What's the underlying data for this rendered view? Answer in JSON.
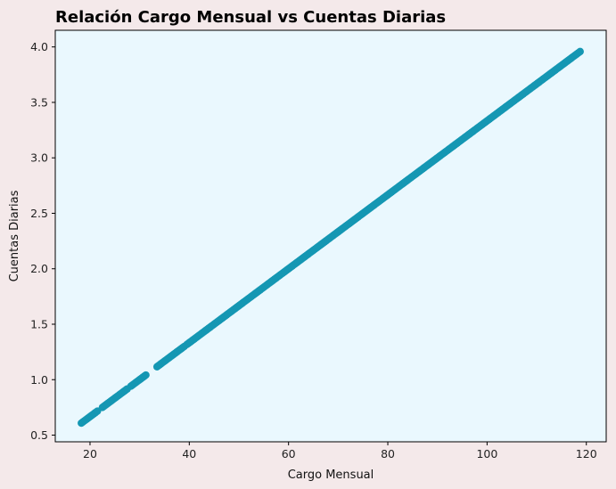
{
  "chart_data": {
    "type": "scatter",
    "title": "Relación Cargo Mensual vs Cuentas Diarias",
    "xlabel": "Cargo Mensual",
    "ylabel": "Cuentas Diarias",
    "xlim": [
      13.0,
      124.0
    ],
    "ylim": [
      0.44,
      4.15
    ],
    "xticks": [
      20,
      40,
      60,
      80,
      100,
      120
    ],
    "yticks": [
      0.5,
      1.0,
      1.5,
      2.0,
      2.5,
      3.0,
      3.5,
      4.0
    ],
    "xtick_labels": [
      "20",
      "40",
      "60",
      "80",
      "100",
      "120"
    ],
    "ytick_labels": [
      "0.5",
      "1.0",
      "1.5",
      "2.0",
      "2.5",
      "3.0",
      "3.5",
      "4.0"
    ],
    "grid": false,
    "relationship": "y = x / 30",
    "x_range": [
      18.25,
      118.75
    ],
    "gaps": [
      [
        21.5,
        22.4
      ],
      [
        27.5,
        28.2
      ],
      [
        31.3,
        33.3
      ],
      [
        39.0,
        39.5
      ]
    ],
    "colors": {
      "points": "#1597b3",
      "plot_background": "#eaf8fe",
      "figure_background": "#f4e9ea"
    }
  }
}
